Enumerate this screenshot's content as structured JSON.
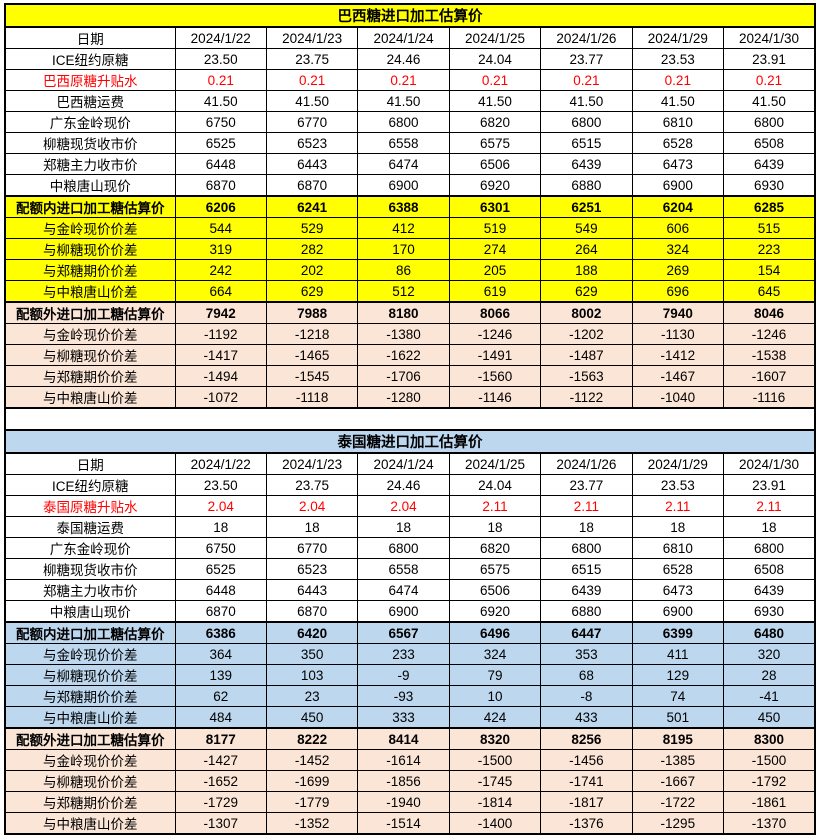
{
  "colors": {
    "quota_in_brazil_bg": "#FFFF00",
    "quota_in_thailand_bg": "#BDD7EE",
    "quota_out_bg": "#FBE5D6",
    "negative_premium_text": "#FF0000",
    "border": "#000000"
  },
  "dates": [
    "2024/1/22",
    "2024/1/23",
    "2024/1/24",
    "2024/1/25",
    "2024/1/26",
    "2024/1/29",
    "2024/1/30"
  ],
  "tables": [
    {
      "id": "brazil",
      "title": "巴西糖进口加工估算价",
      "title_bg": "yellow",
      "date_label": "日期",
      "rows": [
        {
          "label": "ICE纽约原糖",
          "values": [
            "23.50",
            "23.75",
            "24.46",
            "24.04",
            "23.77",
            "23.53",
            "23.91"
          ],
          "bg": "white"
        },
        {
          "label": "巴西原糖升贴水",
          "values": [
            "0.21",
            "0.21",
            "0.21",
            "0.21",
            "0.21",
            "0.21",
            "0.21"
          ],
          "bg": "white",
          "color": "red"
        },
        {
          "label": "巴西糖运费",
          "values": [
            "41.50",
            "41.50",
            "41.50",
            "41.50",
            "41.50",
            "41.50",
            "41.50"
          ],
          "bg": "white"
        },
        {
          "label": "广东金岭现价",
          "values": [
            "6750",
            "6770",
            "6800",
            "6820",
            "6800",
            "6810",
            "6800"
          ],
          "bg": "white"
        },
        {
          "label": "柳糖现货收市价",
          "values": [
            "6525",
            "6523",
            "6558",
            "6575",
            "6515",
            "6528",
            "6508"
          ],
          "bg": "white"
        },
        {
          "label": "郑糖主力收市价",
          "values": [
            "6448",
            "6443",
            "6474",
            "6506",
            "6439",
            "6473",
            "6439"
          ],
          "bg": "white"
        },
        {
          "label": "中粮唐山现价",
          "values": [
            "6870",
            "6870",
            "6900",
            "6920",
            "6880",
            "6900",
            "6930"
          ],
          "bg": "white"
        },
        {
          "label": "配额内进口加工糖估算价",
          "values": [
            "6206",
            "6241",
            "6388",
            "6301",
            "6251",
            "6204",
            "6285"
          ],
          "bg": "yellow",
          "bold": true,
          "section_top": true
        },
        {
          "label": "与金岭现价价差",
          "values": [
            "544",
            "529",
            "412",
            "519",
            "549",
            "606",
            "515"
          ],
          "bg": "yellow"
        },
        {
          "label": "与柳糖现价价差",
          "values": [
            "319",
            "282",
            "170",
            "274",
            "264",
            "324",
            "223"
          ],
          "bg": "yellow"
        },
        {
          "label": "与郑糖期价价差",
          "values": [
            "242",
            "202",
            "86",
            "205",
            "188",
            "269",
            "154"
          ],
          "bg": "yellow"
        },
        {
          "label": "与中粮唐山价差",
          "values": [
            "664",
            "629",
            "512",
            "619",
            "629",
            "696",
            "645"
          ],
          "bg": "yellow"
        },
        {
          "label": "配额外进口加工糖估算价",
          "values": [
            "7942",
            "7988",
            "8180",
            "8066",
            "8002",
            "7940",
            "8046"
          ],
          "bg": "peach",
          "bold": true,
          "section_top": true
        },
        {
          "label": "与金岭现价价差",
          "values": [
            "-1192",
            "-1218",
            "-1380",
            "-1246",
            "-1202",
            "-1130",
            "-1246"
          ],
          "bg": "peach"
        },
        {
          "label": "与柳糖现价价差",
          "values": [
            "-1417",
            "-1465",
            "-1622",
            "-1491",
            "-1487",
            "-1412",
            "-1538"
          ],
          "bg": "peach"
        },
        {
          "label": "与郑糖期价价差",
          "values": [
            "-1494",
            "-1545",
            "-1706",
            "-1560",
            "-1563",
            "-1467",
            "-1607"
          ],
          "bg": "peach"
        },
        {
          "label": "与中粮唐山价差",
          "values": [
            "-1072",
            "-1118",
            "-1280",
            "-1146",
            "-1122",
            "-1040",
            "-1116"
          ],
          "bg": "peach"
        }
      ]
    },
    {
      "id": "thailand",
      "title": "泰国糖进口加工估算价",
      "title_bg": "blue",
      "date_label": "日期",
      "rows": [
        {
          "label": "ICE纽约原糖",
          "values": [
            "23.50",
            "23.75",
            "24.46",
            "24.04",
            "23.77",
            "23.53",
            "23.91"
          ],
          "bg": "white"
        },
        {
          "label": "泰国原糖升贴水",
          "values": [
            "2.04",
            "2.04",
            "2.04",
            "2.11",
            "2.11",
            "2.11",
            "2.11"
          ],
          "bg": "white",
          "color": "red"
        },
        {
          "label": "泰国糖运费",
          "values": [
            "18",
            "18",
            "18",
            "18",
            "18",
            "18",
            "18"
          ],
          "bg": "white"
        },
        {
          "label": "广东金岭现价",
          "values": [
            "6750",
            "6770",
            "6800",
            "6820",
            "6800",
            "6810",
            "6800"
          ],
          "bg": "white"
        },
        {
          "label": "柳糖现货收市价",
          "values": [
            "6525",
            "6523",
            "6558",
            "6575",
            "6515",
            "6528",
            "6508"
          ],
          "bg": "white"
        },
        {
          "label": "郑糖主力收市价",
          "values": [
            "6448",
            "6443",
            "6474",
            "6506",
            "6439",
            "6473",
            "6439"
          ],
          "bg": "white"
        },
        {
          "label": "中粮唐山现价",
          "values": [
            "6870",
            "6870",
            "6900",
            "6920",
            "6880",
            "6900",
            "6930"
          ],
          "bg": "white"
        },
        {
          "label": "配额内进口加工糖估算价",
          "values": [
            "6386",
            "6420",
            "6567",
            "6496",
            "6447",
            "6399",
            "6480"
          ],
          "bg": "blue",
          "bold": true,
          "section_top": true
        },
        {
          "label": "与金岭现价价差",
          "values": [
            "364",
            "350",
            "233",
            "324",
            "353",
            "411",
            "320"
          ],
          "bg": "blue"
        },
        {
          "label": "与柳糖现价价差",
          "values": [
            "139",
            "103",
            "-9",
            "79",
            "68",
            "129",
            "28"
          ],
          "bg": "blue"
        },
        {
          "label": "与郑糖期价价差",
          "values": [
            "62",
            "23",
            "-93",
            "10",
            "-8",
            "74",
            "-41"
          ],
          "bg": "blue"
        },
        {
          "label": "与中粮唐山价差",
          "values": [
            "484",
            "450",
            "333",
            "424",
            "433",
            "501",
            "450"
          ],
          "bg": "blue"
        },
        {
          "label": "配额外进口加工糖估算价",
          "values": [
            "8177",
            "8222",
            "8414",
            "8320",
            "8256",
            "8195",
            "8300"
          ],
          "bg": "peach",
          "bold": true,
          "section_top": true
        },
        {
          "label": "与金岭现价价差",
          "values": [
            "-1427",
            "-1452",
            "-1614",
            "-1500",
            "-1456",
            "-1385",
            "-1500"
          ],
          "bg": "peach"
        },
        {
          "label": "与柳糖现价价差",
          "values": [
            "-1652",
            "-1699",
            "-1856",
            "-1745",
            "-1741",
            "-1667",
            "-1792"
          ],
          "bg": "peach"
        },
        {
          "label": "与郑糖期价价差",
          "values": [
            "-1729",
            "-1779",
            "-1940",
            "-1814",
            "-1817",
            "-1722",
            "-1861"
          ],
          "bg": "peach"
        },
        {
          "label": "与中粮唐山价差",
          "values": [
            "-1307",
            "-1352",
            "-1514",
            "-1400",
            "-1376",
            "-1295",
            "-1370"
          ],
          "bg": "peach"
        }
      ]
    }
  ]
}
